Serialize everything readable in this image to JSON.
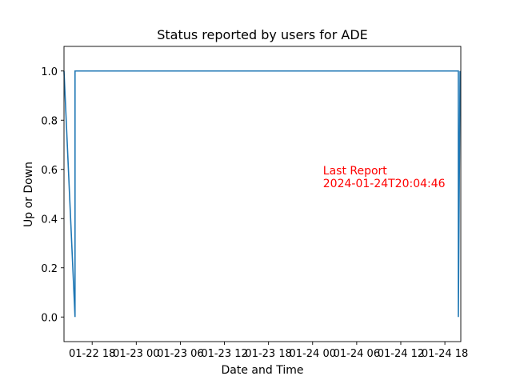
{
  "chart_data": {
    "type": "line",
    "title": "Status reported by users for ADE",
    "xlabel": "Date and Time",
    "ylabel": "Up or Down",
    "x_tick_labels": [
      "01-22 18",
      "01-23 00",
      "01-23 06",
      "01-23 12",
      "01-23 18",
      "01-24 00",
      "01-24 06",
      "01-24 12",
      "01-24 18"
    ],
    "x_tick_times": [
      "2024-01-22T18:00",
      "2024-01-23T00:00",
      "2024-01-23T06:00",
      "2024-01-23T12:00",
      "2024-01-23T18:00",
      "2024-01-24T00:00",
      "2024-01-24T06:00",
      "2024-01-24T12:00",
      "2024-01-24T18:00"
    ],
    "xlim": [
      "2024-01-22T14:10",
      "2024-01-24T20:10"
    ],
    "y_ticks": [
      "0.0",
      "0.2",
      "0.4",
      "0.6",
      "0.8",
      "1.0"
    ],
    "ylim": [
      -0.1,
      1.1
    ],
    "grid": false,
    "series": [
      {
        "color": "#1f77b4",
        "x": [
          "2024-01-22T14:10",
          "2024-01-22T15:40",
          "2024-01-22T15:40",
          "2024-01-24T19:50",
          "2024-01-24T19:50",
          "2024-01-24T20:04"
        ],
        "values": [
          1,
          0,
          1,
          1,
          0,
          1
        ]
      }
    ],
    "annotation": {
      "line1": "Last Report",
      "line2": "2024-01-24T20:04:46",
      "color": "#ff0000",
      "x": "2024-01-24T01:25",
      "y": 0.55
    }
  }
}
